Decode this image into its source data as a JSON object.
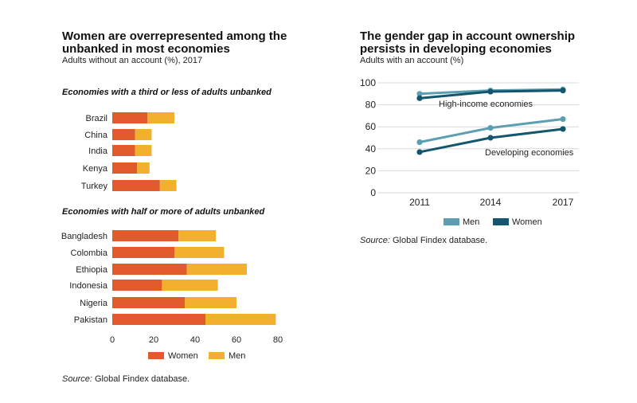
{
  "colors": {
    "women_bar": "#e05a2b",
    "men_bar": "#f2b02e",
    "men_line": "#5b9fb1",
    "women_line": "#14566e"
  },
  "left": {
    "title_line1": "Women are overrepresented among the",
    "title_line2": "unbanked in most economies",
    "subtitle": "Adults without an account (%), 2017",
    "section1": "Economies with a third or less of adults unbanked",
    "section2": "Economies with half or more of adults unbanked",
    "source_prefix": "Source:",
    "source_text": " Global Findex database."
  },
  "right": {
    "title_line1": "The gender gap in account ownership",
    "title_line2": "persists in developing economies",
    "subtitle": "Adults with an account (%)",
    "source_prefix": "Source:",
    "source_text": " Global Findex database."
  },
  "chart_data": [
    {
      "type": "bar",
      "stacked": true,
      "orientation": "horizontal",
      "categories": [
        "Brazil",
        "China",
        "India",
        "Kenya",
        "Turkey",
        "Bangladesh",
        "Colombia",
        "Ethiopia",
        "Indonesia",
        "Nigeria",
        "Pakistan"
      ],
      "groups": [
        {
          "label": "Economies with a third or less of adults unbanked",
          "categories": [
            "Brazil",
            "China",
            "India",
            "Kenya",
            "Turkey"
          ]
        },
        {
          "label": "Economies with half or more of adults unbanked",
          "categories": [
            "Bangladesh",
            "Colombia",
            "Ethiopia",
            "Indonesia",
            "Nigeria",
            "Pakistan"
          ]
        }
      ],
      "series": [
        {
          "name": "Women",
          "values": [
            17,
            11,
            11,
            12,
            23,
            32,
            30,
            36,
            24,
            35,
            45
          ]
        },
        {
          "name": "Men",
          "values": [
            13,
            8,
            8,
            6,
            8,
            18,
            24,
            29,
            27,
            25,
            34
          ]
        }
      ],
      "xlim": [
        0,
        80
      ],
      "xticks": [
        0,
        20,
        40,
        60,
        80
      ],
      "legend": "bottom"
    },
    {
      "type": "line",
      "x": [
        "2011",
        "2014",
        "2017"
      ],
      "series": [
        {
          "name": "Men",
          "values": [
            90,
            93,
            94
          ]
        },
        {
          "name": "Women",
          "values": [
            86,
            92,
            93
          ]
        },
        {
          "name": "Men",
          "values": [
            46,
            59,
            67
          ]
        },
        {
          "name": "Women",
          "values": [
            37,
            50,
            58
          ]
        }
      ],
      "annotations": [
        "High-income economies",
        "Developing economies"
      ],
      "ylim": [
        0,
        100
      ],
      "yticks": [
        0,
        20,
        40,
        60,
        80,
        100
      ],
      "grid": true,
      "legend": "bottom"
    }
  ]
}
